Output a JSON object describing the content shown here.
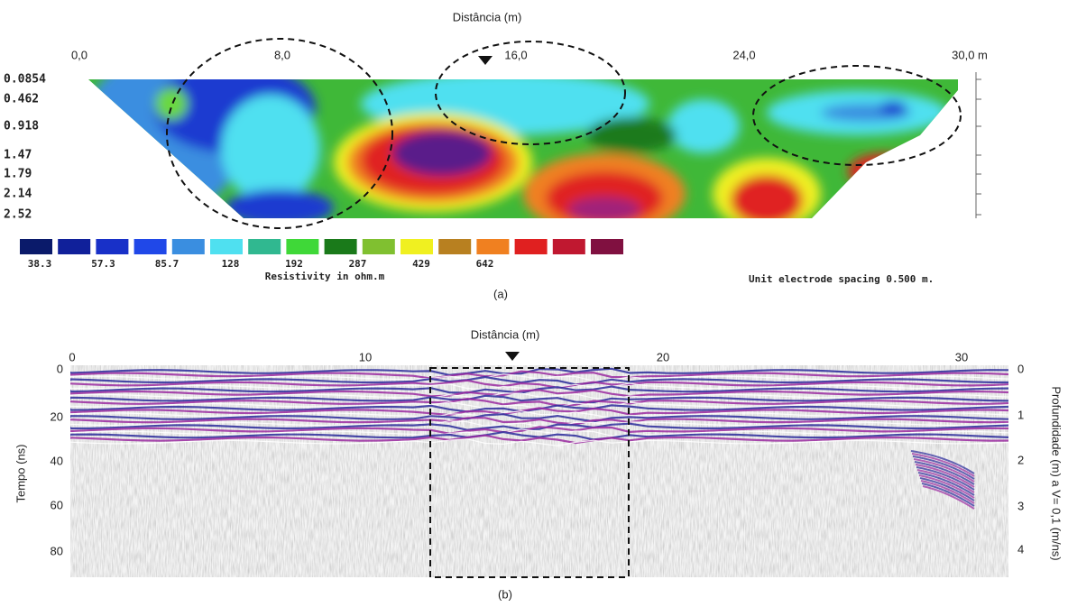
{
  "panel_a": {
    "axis_title": "Distância (m)",
    "x_ticks": [
      "0,0",
      "8,0",
      "16,0",
      "24,0",
      "30,0 m"
    ],
    "depth_ticks": [
      "0.0854",
      "0.462",
      "0.918",
      "1.47",
      "1.79",
      "2.14",
      "2.52"
    ],
    "legend_labels": [
      "38.3",
      "57.3",
      "85.7",
      "128",
      "192",
      "287",
      "429",
      "642"
    ],
    "legend_title": "Resistivity in ohm.m",
    "note": "Unit electrode spacing 0.500 m.",
    "caption": "(a)"
  },
  "panel_b": {
    "axis_title": "Distância (m)",
    "x_ticks": [
      "0",
      "10",
      "20",
      "30"
    ],
    "y_title": "Tempo (ns)",
    "y_ticks": [
      "0",
      "20",
      "40",
      "60",
      "80"
    ],
    "y2_title": "Profundidade (m) a V= 0,1 (m/ns)",
    "y2_ticks": [
      "0",
      "1",
      "2",
      "3",
      "4"
    ],
    "caption": "(b)"
  }
}
